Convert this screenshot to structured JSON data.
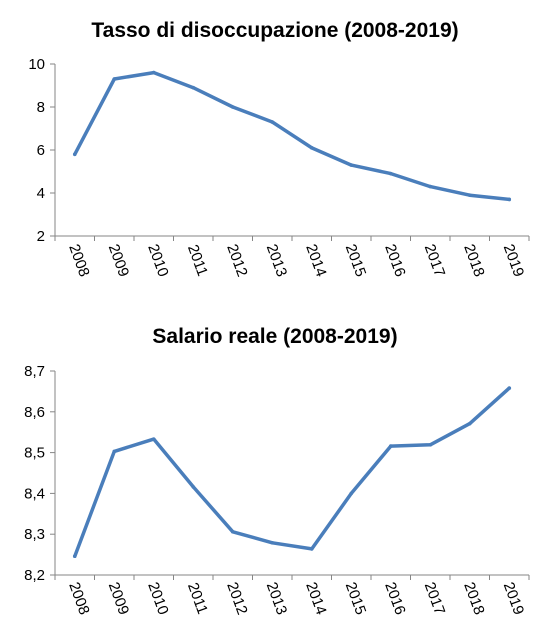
{
  "chart_data": [
    {
      "type": "line",
      "title": "Tasso di disoccupazione (2008-2019)",
      "categories": [
        "2008",
        "2009",
        "2010",
        "2011",
        "2012",
        "2013",
        "2014",
        "2015",
        "2016",
        "2017",
        "2018",
        "2019"
      ],
      "values": [
        5.8,
        9.3,
        9.6,
        8.9,
        8.0,
        7.3,
        6.1,
        5.3,
        4.9,
        4.3,
        3.9,
        3.7
      ],
      "ylim": [
        2,
        10
      ],
      "yticks": [
        "2",
        "4",
        "6",
        "8",
        "10"
      ],
      "ytick_values": [
        2,
        4,
        6,
        8,
        10
      ],
      "color": "#4a7ebb",
      "grid": false,
      "legend": "none"
    },
    {
      "type": "line",
      "title": "Salario reale (2008-2019)",
      "categories": [
        "2008",
        "2009",
        "2010",
        "2011",
        "2012",
        "2013",
        "2014",
        "2015",
        "2016",
        "2017",
        "2018",
        "2019"
      ],
      "values": [
        8.246,
        8.503,
        8.533,
        8.416,
        8.306,
        8.279,
        8.264,
        8.4,
        8.516,
        8.519,
        8.571,
        8.658
      ],
      "ylim": [
        8.2,
        8.7
      ],
      "yticks": [
        "8,2",
        "8,3",
        "8,4",
        "8,5",
        "8,6",
        "8,7"
      ],
      "ytick_values": [
        8.2,
        8.3,
        8.4,
        8.5,
        8.6,
        8.7
      ],
      "color": "#4a7ebb",
      "grid": false,
      "legend": "none"
    }
  ]
}
